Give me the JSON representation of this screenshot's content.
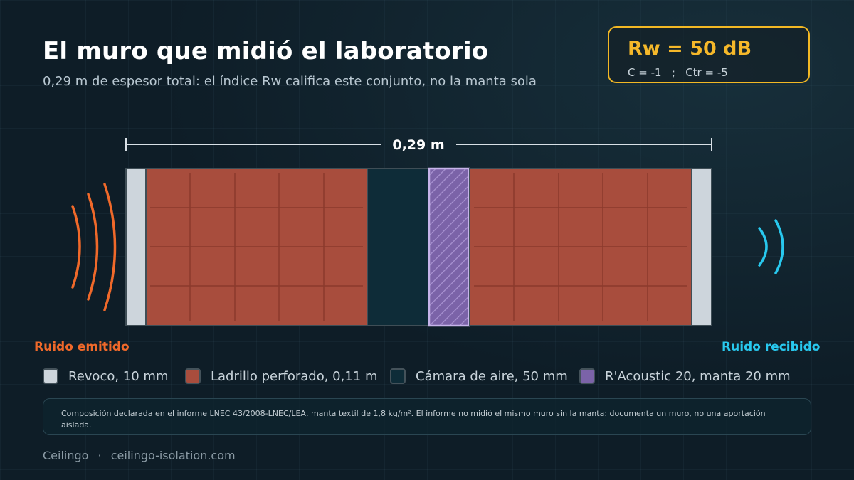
{
  "header": {
    "title": "El muro que midió el laboratorio",
    "subtitle": "0,29 m de espesor total: el índice Rw califica este conjunto, no la manta sola"
  },
  "rating": {
    "rw": "Rw = 50 dB",
    "corrections": "C = -1   ;   Ctr = -5"
  },
  "dimension": {
    "total_label": "0,29 m"
  },
  "labels": {
    "emitted": "Ruido emitido",
    "received": "Ruido recibido"
  },
  "legend": [
    {
      "label": "Revoco, 10 mm",
      "color": "#cdd5dc"
    },
    {
      "label": "Ladrillo perforado, 0,11 m",
      "color": "#a84d3d"
    },
    {
      "label": "Cámara de aire, 50 mm",
      "color": "#0e2c38"
    },
    {
      "label": "R'Acoustic 20, manta 20 mm",
      "color": "#7b63a8"
    }
  ],
  "note": {
    "text": "Composición declarada en el informe LNEC 43/2008-LNEC/LEA, manta textil de 1,8 kg/m². El informe no midió el mismo muro sin la manta: documenta un muro, no una aportación aislada."
  },
  "footer": {
    "brand": "Ceilingo",
    "separator": "·",
    "url": "ceilingo-isolation.com"
  },
  "colors": {
    "accent": "#f2b824",
    "emitted_waves": "#f0692a",
    "received_waves": "#28c8ee"
  }
}
